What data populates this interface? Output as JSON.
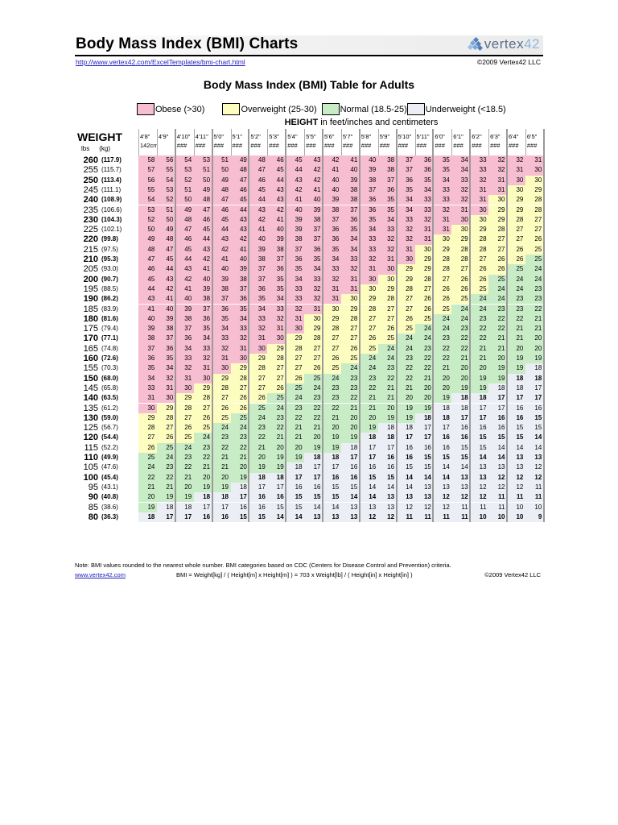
{
  "header": {
    "title": "Body Mass Index (BMI) Charts",
    "logo_text_a": "vertex",
    "logo_text_b": "42",
    "url": "http://www.vertex42.com/ExcelTemplates/bmi-chart.html",
    "copyright": "©2009 Vertex42 LLC"
  },
  "table_title": "Body Mass Index (BMI) Table for Adults",
  "legend": [
    {
      "label": "Obese (>30)",
      "code": "O",
      "color": "#f7bdd0"
    },
    {
      "label": "Overweight (25-30)",
      "code": "V",
      "color": "#fefdc0"
    },
    {
      "label": "Normal (18.5-25)",
      "code": "N",
      "color": "#c7ecc6"
    },
    {
      "label": "Underweight (<18.5)",
      "code": "U",
      "color": "#eceef6"
    }
  ],
  "height_caption_bold": "HEIGHT",
  "height_caption_rest": " in feet/inches and centimeters",
  "weight_header": "WEIGHT",
  "units": {
    "lbs": "lbs",
    "kg": "(kg)"
  },
  "heights": [
    {
      "ft": "4'8\"",
      "cm": "142cm"
    },
    {
      "ft": "4'9\"",
      "cm": ""
    },
    {
      "ft": "4'10\"",
      "cm": "###"
    },
    {
      "ft": "4'11\"",
      "cm": "###"
    },
    {
      "ft": "5'0\"",
      "cm": "###"
    },
    {
      "ft": "5'1\"",
      "cm": "###"
    },
    {
      "ft": "5'2\"",
      "cm": "###"
    },
    {
      "ft": "5'3\"",
      "cm": "###"
    },
    {
      "ft": "5'4\"",
      "cm": "###"
    },
    {
      "ft": "5'5\"",
      "cm": "###"
    },
    {
      "ft": "5'6\"",
      "cm": "###"
    },
    {
      "ft": "5'7\"",
      "cm": "###"
    },
    {
      "ft": "5'8\"",
      "cm": "###"
    },
    {
      "ft": "5'9\"",
      "cm": "###"
    },
    {
      "ft": "5'10\"",
      "cm": "###"
    },
    {
      "ft": "5'11\"",
      "cm": "###"
    },
    {
      "ft": "6'0\"",
      "cm": "###"
    },
    {
      "ft": "6'1\"",
      "cm": "###"
    },
    {
      "ft": "6'2\"",
      "cm": "###"
    },
    {
      "ft": "6'3\"",
      "cm": "###"
    },
    {
      "ft": "6'4\"",
      "cm": "###"
    },
    {
      "ft": "6'5\"",
      "cm": "###"
    }
  ],
  "rows": [
    {
      "lbs": "260",
      "kg": "(117.9)",
      "bold": true,
      "cats": "OOOOOOOOOOOOOOOOOOOOOO",
      "values": [
        58,
        56,
        54,
        53,
        51,
        49,
        48,
        46,
        45,
        43,
        42,
        41,
        40,
        38,
        37,
        36,
        35,
        34,
        33,
        32,
        32,
        31
      ]
    },
    {
      "lbs": "255",
      "kg": "(115.7)",
      "bold": false,
      "cats": "OOOOOOOOOOOOOOOOOOOOOO",
      "values": [
        57,
        55,
        53,
        51,
        50,
        48,
        47,
        45,
        44,
        42,
        41,
        40,
        39,
        38,
        37,
        36,
        35,
        34,
        33,
        32,
        31,
        30
      ]
    },
    {
      "lbs": "250",
      "kg": "(113.4)",
      "bold": true,
      "cats": "OOOOOOOOOOOOOOOOOOOOOV",
      "values": [
        56,
        54,
        52,
        50,
        49,
        47,
        46,
        44,
        43,
        42,
        40,
        39,
        38,
        37,
        36,
        35,
        34,
        33,
        32,
        31,
        30,
        30
      ]
    },
    {
      "lbs": "245",
      "kg": "(111.1)",
      "bold": false,
      "cats": "OOOOOOOOOOOOOOOOOOOOVV",
      "values": [
        55,
        53,
        51,
        49,
        48,
        46,
        45,
        43,
        42,
        41,
        40,
        38,
        37,
        36,
        35,
        34,
        33,
        32,
        31,
        31,
        30,
        29
      ]
    },
    {
      "lbs": "240",
      "kg": "(108.9)",
      "bold": true,
      "cats": "OOOOOOOOOOOOOOOOOOOVVV",
      "values": [
        54,
        52,
        50,
        48,
        47,
        45,
        44,
        43,
        41,
        40,
        39,
        38,
        36,
        35,
        34,
        33,
        33,
        32,
        31,
        30,
        29,
        28
      ]
    },
    {
      "lbs": "235",
      "kg": "(106.6)",
      "bold": false,
      "cats": "OOOOOOOOOOOOOOOOOOOVVV",
      "values": [
        53,
        51,
        49,
        47,
        46,
        44,
        43,
        42,
        40,
        39,
        38,
        37,
        36,
        35,
        34,
        33,
        32,
        31,
        30,
        29,
        29,
        28
      ]
    },
    {
      "lbs": "230",
      "kg": "(104.3)",
      "bold": true,
      "cats": "OOOOOOOOOOOOOOOOOOVVVV",
      "values": [
        52,
        50,
        48,
        46,
        45,
        43,
        42,
        41,
        39,
        38,
        37,
        36,
        35,
        34,
        33,
        32,
        31,
        30,
        30,
        29,
        28,
        27
      ]
    },
    {
      "lbs": "225",
      "kg": "(102.1)",
      "bold": false,
      "cats": "OOOOOOOOOOOOOOOOOVVVVV",
      "values": [
        50,
        49,
        47,
        45,
        44,
        43,
        41,
        40,
        39,
        37,
        36,
        35,
        34,
        33,
        32,
        31,
        31,
        30,
        29,
        28,
        27,
        27
      ]
    },
    {
      "lbs": "220",
      "kg": "(99.8)",
      "bold": true,
      "cats": "OOOOOOOOOOOOOOOOVVVVVV",
      "values": [
        49,
        48,
        46,
        44,
        43,
        42,
        40,
        39,
        38,
        37,
        36,
        34,
        33,
        32,
        32,
        31,
        30,
        29,
        28,
        27,
        27,
        26
      ]
    },
    {
      "lbs": "215",
      "kg": "(97.5)",
      "bold": false,
      "cats": "OOOOOOOOOOOOOOOVVVVVVV",
      "values": [
        48,
        47,
        45,
        43,
        42,
        41,
        39,
        38,
        37,
        36,
        35,
        34,
        33,
        32,
        31,
        30,
        29,
        28,
        28,
        27,
        26,
        25
      ]
    },
    {
      "lbs": "210",
      "kg": "(95.3)",
      "bold": true,
      "cats": "OOOOOOOOOOOOOOOVVVVVVN",
      "values": [
        47,
        45,
        44,
        42,
        41,
        40,
        38,
        37,
        36,
        35,
        34,
        33,
        32,
        31,
        30,
        29,
        28,
        28,
        27,
        26,
        26,
        25
      ]
    },
    {
      "lbs": "205",
      "kg": "(93.0)",
      "bold": false,
      "cats": "OOOOOOOOOOOOOOVVVVVVNN",
      "values": [
        46,
        44,
        43,
        41,
        40,
        39,
        37,
        36,
        35,
        34,
        33,
        32,
        31,
        30,
        29,
        29,
        28,
        27,
        26,
        26,
        25,
        24
      ]
    },
    {
      "lbs": "200",
      "kg": "(90.7)",
      "bold": true,
      "cats": "OOOOOOOOOOOOOVVVVVVNNN",
      "values": [
        45,
        43,
        42,
        40,
        39,
        38,
        37,
        35,
        34,
        33,
        32,
        31,
        30,
        30,
        29,
        28,
        27,
        26,
        26,
        25,
        24,
        24
      ]
    },
    {
      "lbs": "195",
      "kg": "(88.5)",
      "bold": false,
      "cats": "OOOOOOOOOOOOVVVVVVVNNN",
      "values": [
        44,
        42,
        41,
        39,
        38,
        37,
        36,
        35,
        33,
        32,
        31,
        31,
        30,
        29,
        28,
        27,
        26,
        26,
        25,
        24,
        24,
        23
      ]
    },
    {
      "lbs": "190",
      "kg": "(86.2)",
      "bold": true,
      "cats": "OOOOOOOOOOOVVVVVVVNNNN",
      "values": [
        43,
        41,
        40,
        38,
        37,
        36,
        35,
        34,
        33,
        32,
        31,
        30,
        29,
        28,
        27,
        26,
        26,
        25,
        24,
        24,
        23,
        23
      ]
    },
    {
      "lbs": "185",
      "kg": "(83.9)",
      "bold": false,
      "cats": "OOOOOOOOOOVVVVVVVNNNNN",
      "values": [
        41,
        40,
        39,
        37,
        36,
        35,
        34,
        33,
        32,
        31,
        30,
        29,
        28,
        27,
        27,
        26,
        25,
        24,
        24,
        23,
        23,
        22
      ]
    },
    {
      "lbs": "180",
      "kg": "(81.6)",
      "bold": true,
      "cats": "OOOOOOOOOVVVVVVVNNNNNN",
      "values": [
        40,
        39,
        38,
        36,
        35,
        34,
        33,
        32,
        31,
        30,
        29,
        28,
        27,
        27,
        26,
        25,
        24,
        24,
        23,
        22,
        22,
        21
      ]
    },
    {
      "lbs": "175",
      "kg": "(79.4)",
      "bold": false,
      "cats": "OOOOOOOOOVVVVVVNNNNNNN",
      "values": [
        39,
        38,
        37,
        35,
        34,
        33,
        32,
        31,
        30,
        29,
        28,
        27,
        27,
        26,
        25,
        24,
        24,
        23,
        22,
        22,
        21,
        21
      ]
    },
    {
      "lbs": "170",
      "kg": "(77.1)",
      "bold": true,
      "cats": "OOOOOOOOVVVVVVNNNNNNNN",
      "values": [
        38,
        37,
        36,
        34,
        33,
        32,
        31,
        30,
        29,
        28,
        27,
        27,
        26,
        25,
        24,
        24,
        23,
        22,
        22,
        21,
        21,
        20
      ]
    },
    {
      "lbs": "165",
      "kg": "(74.8)",
      "bold": false,
      "cats": "OOOOOOOVVVVVVNNNNNNNNN",
      "values": [
        37,
        36,
        34,
        33,
        32,
        31,
        30,
        29,
        28,
        27,
        27,
        26,
        25,
        24,
        24,
        23,
        22,
        22,
        21,
        21,
        20,
        20
      ]
    },
    {
      "lbs": "160",
      "kg": "(72.6)",
      "bold": true,
      "cats": "OOOOOOVVVVVVNNNNNNNNNN",
      "values": [
        36,
        35,
        33,
        32,
        31,
        30,
        29,
        28,
        27,
        27,
        26,
        25,
        24,
        24,
        23,
        22,
        22,
        21,
        21,
        20,
        19,
        19
      ]
    },
    {
      "lbs": "155",
      "kg": "(70.3)",
      "bold": false,
      "cats": "OOOOOVVVVVVNNNNNNNNNNU",
      "values": [
        35,
        34,
        32,
        31,
        30,
        29,
        28,
        27,
        27,
        26,
        25,
        24,
        24,
        23,
        22,
        22,
        21,
        20,
        20,
        19,
        19,
        18
      ]
    },
    {
      "lbs": "150",
      "kg": "(68.0)",
      "bold": true,
      "cats": "OOOOVVVVVNNNNNNNNNNNUU",
      "values": [
        34,
        32,
        31,
        30,
        29,
        28,
        27,
        27,
        26,
        25,
        24,
        23,
        23,
        22,
        22,
        21,
        20,
        20,
        19,
        19,
        18,
        18
      ]
    },
    {
      "lbs": "145",
      "kg": "(65.8)",
      "bold": false,
      "cats": "OOOVVVVVNNNNNNNNNNNUUU",
      "values": [
        33,
        31,
        30,
        29,
        28,
        27,
        27,
        26,
        25,
        24,
        23,
        23,
        22,
        21,
        21,
        20,
        20,
        19,
        19,
        18,
        18,
        17
      ]
    },
    {
      "lbs": "140",
      "kg": "(63.5)",
      "bold": true,
      "cats": "OOVVVVVNNNNNNNNNNUUUUU",
      "values": [
        31,
        30,
        29,
        28,
        27,
        26,
        26,
        25,
        24,
        23,
        23,
        22,
        21,
        21,
        20,
        20,
        19,
        18,
        18,
        17,
        17,
        17
      ]
    },
    {
      "lbs": "135",
      "kg": "(61.2)",
      "bold": false,
      "cats": "OVVVVVNNNNNNNNNNUUUUUU",
      "values": [
        30,
        29,
        28,
        27,
        26,
        26,
        25,
        24,
        23,
        22,
        22,
        21,
        21,
        20,
        19,
        19,
        18,
        18,
        17,
        17,
        16,
        16
      ]
    },
    {
      "lbs": "130",
      "kg": "(59.0)",
      "bold": true,
      "cats": "VVVVVNNNNNNNNNNUUUUUUU",
      "values": [
        29,
        28,
        27,
        26,
        25,
        25,
        24,
        23,
        22,
        22,
        21,
        20,
        20,
        19,
        19,
        18,
        18,
        17,
        17,
        16,
        16,
        15
      ]
    },
    {
      "lbs": "125",
      "kg": "(56.7)",
      "bold": false,
      "cats": "VVVVNNNNNNNNNUUUUUUUUU",
      "values": [
        28,
        27,
        26,
        25,
        24,
        24,
        23,
        22,
        21,
        21,
        20,
        20,
        19,
        18,
        18,
        17,
        17,
        16,
        16,
        16,
        15,
        15
      ]
    },
    {
      "lbs": "120",
      "kg": "(54.4)",
      "bold": true,
      "cats": "VVVNNNNNNNNNUUUUUUUUUU",
      "values": [
        27,
        26,
        25,
        24,
        23,
        23,
        22,
        21,
        21,
        20,
        19,
        19,
        18,
        18,
        17,
        17,
        16,
        16,
        15,
        15,
        15,
        14
      ]
    },
    {
      "lbs": "115",
      "kg": "(52.2)",
      "bold": false,
      "cats": "VNNNNNNNNNNUUUUUUUUUUU",
      "values": [
        26,
        25,
        24,
        23,
        22,
        22,
        21,
        20,
        20,
        19,
        19,
        18,
        17,
        17,
        16,
        16,
        16,
        15,
        15,
        14,
        14,
        14
      ]
    },
    {
      "lbs": "110",
      "kg": "(49.9)",
      "bold": true,
      "cats": "NNNNNNNNNUUUUUUUUUUUUU",
      "values": [
        25,
        24,
        23,
        22,
        21,
        21,
        20,
        19,
        19,
        18,
        18,
        17,
        17,
        16,
        16,
        15,
        15,
        15,
        14,
        14,
        13,
        13
      ]
    },
    {
      "lbs": "105",
      "kg": "(47.6)",
      "bold": false,
      "cats": "NNNNNNNNUUUUUUUUUUUUUU",
      "values": [
        24,
        23,
        22,
        21,
        21,
        20,
        19,
        19,
        18,
        17,
        17,
        16,
        16,
        16,
        15,
        15,
        14,
        14,
        13,
        13,
        13,
        12
      ]
    },
    {
      "lbs": "100",
      "kg": "(45.4)",
      "bold": true,
      "cats": "NNNNNNUUUUUUUUUUUUUUUU",
      "values": [
        22,
        22,
        21,
        20,
        20,
        19,
        18,
        18,
        17,
        17,
        16,
        16,
        15,
        15,
        14,
        14,
        14,
        13,
        13,
        12,
        12,
        12
      ]
    },
    {
      "lbs": "95",
      "kg": "(43.1)",
      "bold": false,
      "cats": "NNNNNUUUUUUUUUUUUUUUUU",
      "values": [
        21,
        21,
        20,
        19,
        19,
        18,
        17,
        17,
        16,
        16,
        15,
        15,
        14,
        14,
        14,
        13,
        13,
        13,
        12,
        12,
        12,
        11
      ]
    },
    {
      "lbs": "90",
      "kg": "(40.8)",
      "bold": true,
      "cats": "NNNUUUUUUUUUUUUUUUUUUU",
      "values": [
        20,
        19,
        19,
        18,
        18,
        17,
        16,
        16,
        15,
        15,
        15,
        14,
        14,
        13,
        13,
        13,
        12,
        12,
        12,
        11,
        11,
        11
      ]
    },
    {
      "lbs": "85",
      "kg": "(38.6)",
      "bold": false,
      "cats": "NUUUUUUUUUUUUUUUUUUUUU",
      "values": [
        19,
        18,
        18,
        17,
        17,
        16,
        16,
        15,
        15,
        14,
        14,
        13,
        13,
        13,
        12,
        12,
        12,
        11,
        11,
        11,
        10,
        10
      ]
    },
    {
      "lbs": "80",
      "kg": "(36.3)",
      "bold": true,
      "cats": "UUUUUUUUUUUUUUUUUUUUUU",
      "values": [
        18,
        17,
        17,
        16,
        16,
        15,
        15,
        14,
        14,
        13,
        13,
        13,
        12,
        12,
        11,
        11,
        11,
        11,
        10,
        10,
        10,
        9
      ]
    }
  ],
  "footer": {
    "note": "Note: BMI values rounded to the nearest whole number. BMI categories based on CDC (Centers for Disease Control and Prevention) criteria.",
    "site_link": "www.vertex42.com",
    "formula": "BMI = Weight[kg] / ( Height[m] x Height[m] ) = 703 x Weight[lb] / ( Height[in] x Height[in] )",
    "copyright": "©2009 Vertex42 LLC"
  }
}
